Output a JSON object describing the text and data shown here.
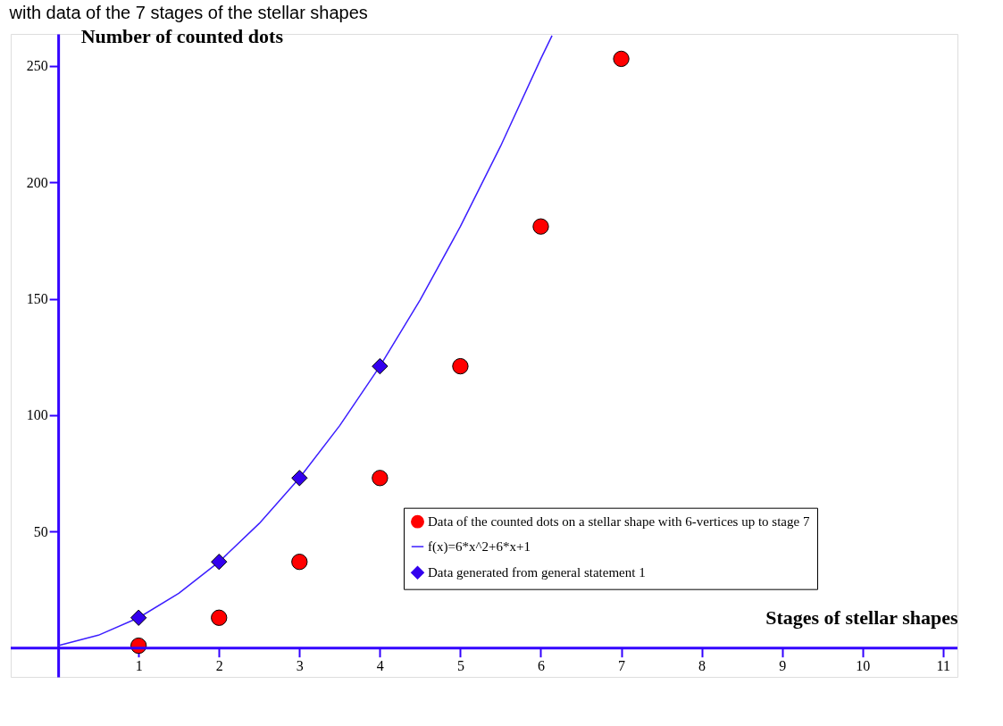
{
  "chart_data": {
    "type": "scatter",
    "title": "with data of the 7 stages of the stellar shapes",
    "xlabel": "Stages of stellar shapes",
    "ylabel": "Number of counted dots",
    "xlim": [
      -0.59,
      11.18
    ],
    "ylim": [
      -12.4,
      263.7
    ],
    "xticks": [
      1,
      2,
      3,
      4,
      5,
      6,
      7,
      8,
      9,
      10,
      11
    ],
    "yticks": [
      50,
      100,
      150,
      200,
      250
    ],
    "grid": false,
    "legend": "bottom right",
    "ref_lines": [
      {
        "axis": "y",
        "value": 0,
        "color": "#3300ff"
      }
    ],
    "series": [
      {
        "name": "Data of the counted dots on a stellar shape with 6-vertices up to stage 7",
        "type": "scatter",
        "marker": "circle",
        "color": "#ff0000",
        "x": [
          1,
          2,
          3,
          4,
          5,
          6,
          7
        ],
        "values": [
          1,
          13,
          37,
          73,
          121,
          181,
          253
        ]
      },
      {
        "name": "f(x)=6*x^2+6*x+1",
        "type": "line",
        "marker": "none",
        "line_style": "solid",
        "color": "#3c1eff",
        "x": [
          0,
          0.5,
          1,
          1.5,
          2,
          2.5,
          3,
          3.5,
          4,
          4.5,
          5,
          5.5,
          6,
          6.14
        ],
        "values": [
          1,
          5.5,
          13,
          23.5,
          37,
          53.5,
          73,
          95.5,
          121,
          149.5,
          181,
          215.5,
          253,
          263
        ]
      },
      {
        "name": "Data generated from general statement 1",
        "type": "scatter",
        "marker": "diamond",
        "color": "#3300ee",
        "x": [
          1,
          2,
          3,
          4
        ],
        "values": [
          13,
          37,
          73,
          121
        ]
      }
    ]
  }
}
